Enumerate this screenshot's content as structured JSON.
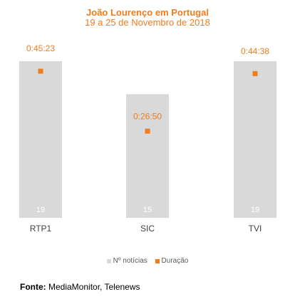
{
  "chart_data": {
    "type": "bar",
    "title": "João Lourenço em Portugal",
    "subtitle": "19 a 25 de Novembro de 2018",
    "categories": [
      "RTP1",
      "SIC",
      "TVI"
    ],
    "series": [
      {
        "name": "Nº notícias",
        "values": [
          19,
          15,
          19
        ],
        "data_labels": [
          "19",
          "15",
          "19"
        ],
        "color": "#d9d9d9"
      },
      {
        "name": "Duração",
        "values": [
          "0:45:23",
          "0:26:50",
          "0:44:38"
        ],
        "seconds": [
          2723,
          1610,
          2678
        ],
        "data_labels": [
          "0:45:23",
          "0:26:50",
          "0:44:38"
        ],
        "color": "#f07c1e"
      }
    ],
    "legend_position": "bottom",
    "grid": false
  },
  "source": {
    "label": "Fonte:",
    "text": "MediaMonitor, Telenews"
  }
}
